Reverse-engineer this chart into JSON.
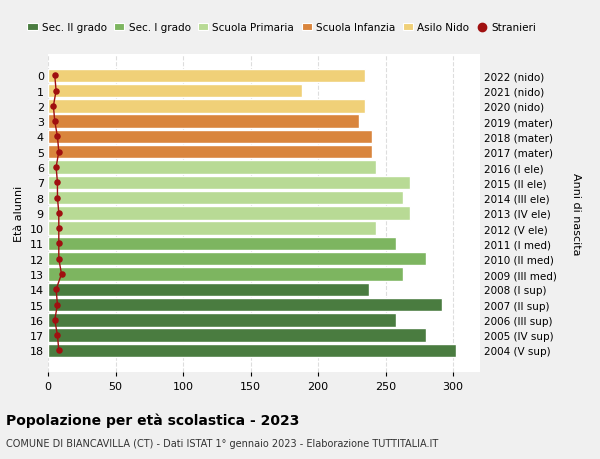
{
  "ages": [
    18,
    17,
    16,
    15,
    14,
    13,
    12,
    11,
    10,
    9,
    8,
    7,
    6,
    5,
    4,
    3,
    2,
    1,
    0
  ],
  "years": [
    "2004 (V sup)",
    "2005 (IV sup)",
    "2006 (III sup)",
    "2007 (II sup)",
    "2008 (I sup)",
    "2009 (III med)",
    "2010 (II med)",
    "2011 (I med)",
    "2012 (V ele)",
    "2013 (IV ele)",
    "2014 (III ele)",
    "2015 (II ele)",
    "2016 (I ele)",
    "2017 (mater)",
    "2018 (mater)",
    "2019 (mater)",
    "2020 (nido)",
    "2021 (nido)",
    "2022 (nido)"
  ],
  "bar_values": [
    302,
    280,
    258,
    292,
    238,
    263,
    280,
    258,
    243,
    268,
    263,
    268,
    243,
    240,
    240,
    230,
    235,
    188,
    235
  ],
  "stranieri": [
    8,
    7,
    5,
    7,
    6,
    10,
    8,
    8,
    8,
    8,
    7,
    7,
    6,
    8,
    7,
    5,
    4,
    6,
    5
  ],
  "bar_colors": [
    "#4a7c40",
    "#4a7c40",
    "#4a7c40",
    "#4a7c40",
    "#4a7c40",
    "#7db560",
    "#7db560",
    "#7db560",
    "#b8da95",
    "#b8da95",
    "#b8da95",
    "#b8da95",
    "#b8da95",
    "#d9853d",
    "#d9853d",
    "#d9853d",
    "#f0d078",
    "#f0d078",
    "#f0d078"
  ],
  "legend_labels": [
    "Sec. II grado",
    "Sec. I grado",
    "Scuola Primaria",
    "Scuola Infanzia",
    "Asilo Nido",
    "Stranieri"
  ],
  "legend_colors": [
    "#4a7c40",
    "#7db560",
    "#b8da95",
    "#d9853d",
    "#f0d078",
    "#a01010"
  ],
  "ylabel_left": "Età alunni",
  "ylabel_right": "Anni di nascita",
  "title": "Popolazione per età scolastica - 2023",
  "subtitle": "COMUNE DI BIANCAVILLA (CT) - Dati ISTAT 1° gennaio 2023 - Elaborazione TUTTITALIA.IT",
  "xlim": [
    0,
    320
  ],
  "xticks": [
    0,
    50,
    100,
    150,
    200,
    250,
    300
  ],
  "bg_color": "#f0f0f0",
  "plot_bg_color": "#ffffff",
  "bar_edge_color": "#ffffff",
  "stranieri_color": "#a01010",
  "stranieri_line_color": "#a01010",
  "grid_color": "#dddddd"
}
